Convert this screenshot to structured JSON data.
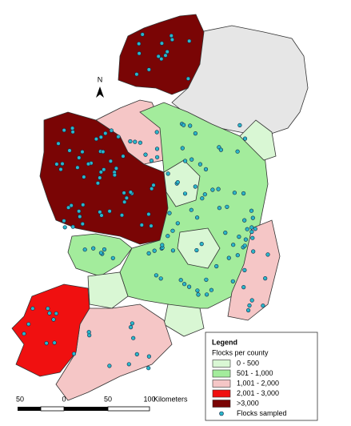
{
  "map": {
    "north_label": "N",
    "legend": {
      "title": "Legend",
      "subtitle": "Flocks per county",
      "items": [
        {
          "label": "0 - 500",
          "color": "#d9f7d4"
        },
        {
          "label": "501 - 1,000",
          "color": "#a3ec9c"
        },
        {
          "label": "1,001 - 2,000",
          "color": "#f5c6c6"
        },
        {
          "label": "2,001 - 3,000",
          "color": "#f01010"
        },
        {
          "label": ">3,000",
          "color": "#7a0505"
        }
      ],
      "points_label": "Flocks sampled"
    },
    "scale_bar": {
      "labels": [
        "50",
        "0",
        "50",
        "100"
      ],
      "unit": "Kilometers"
    }
  }
}
